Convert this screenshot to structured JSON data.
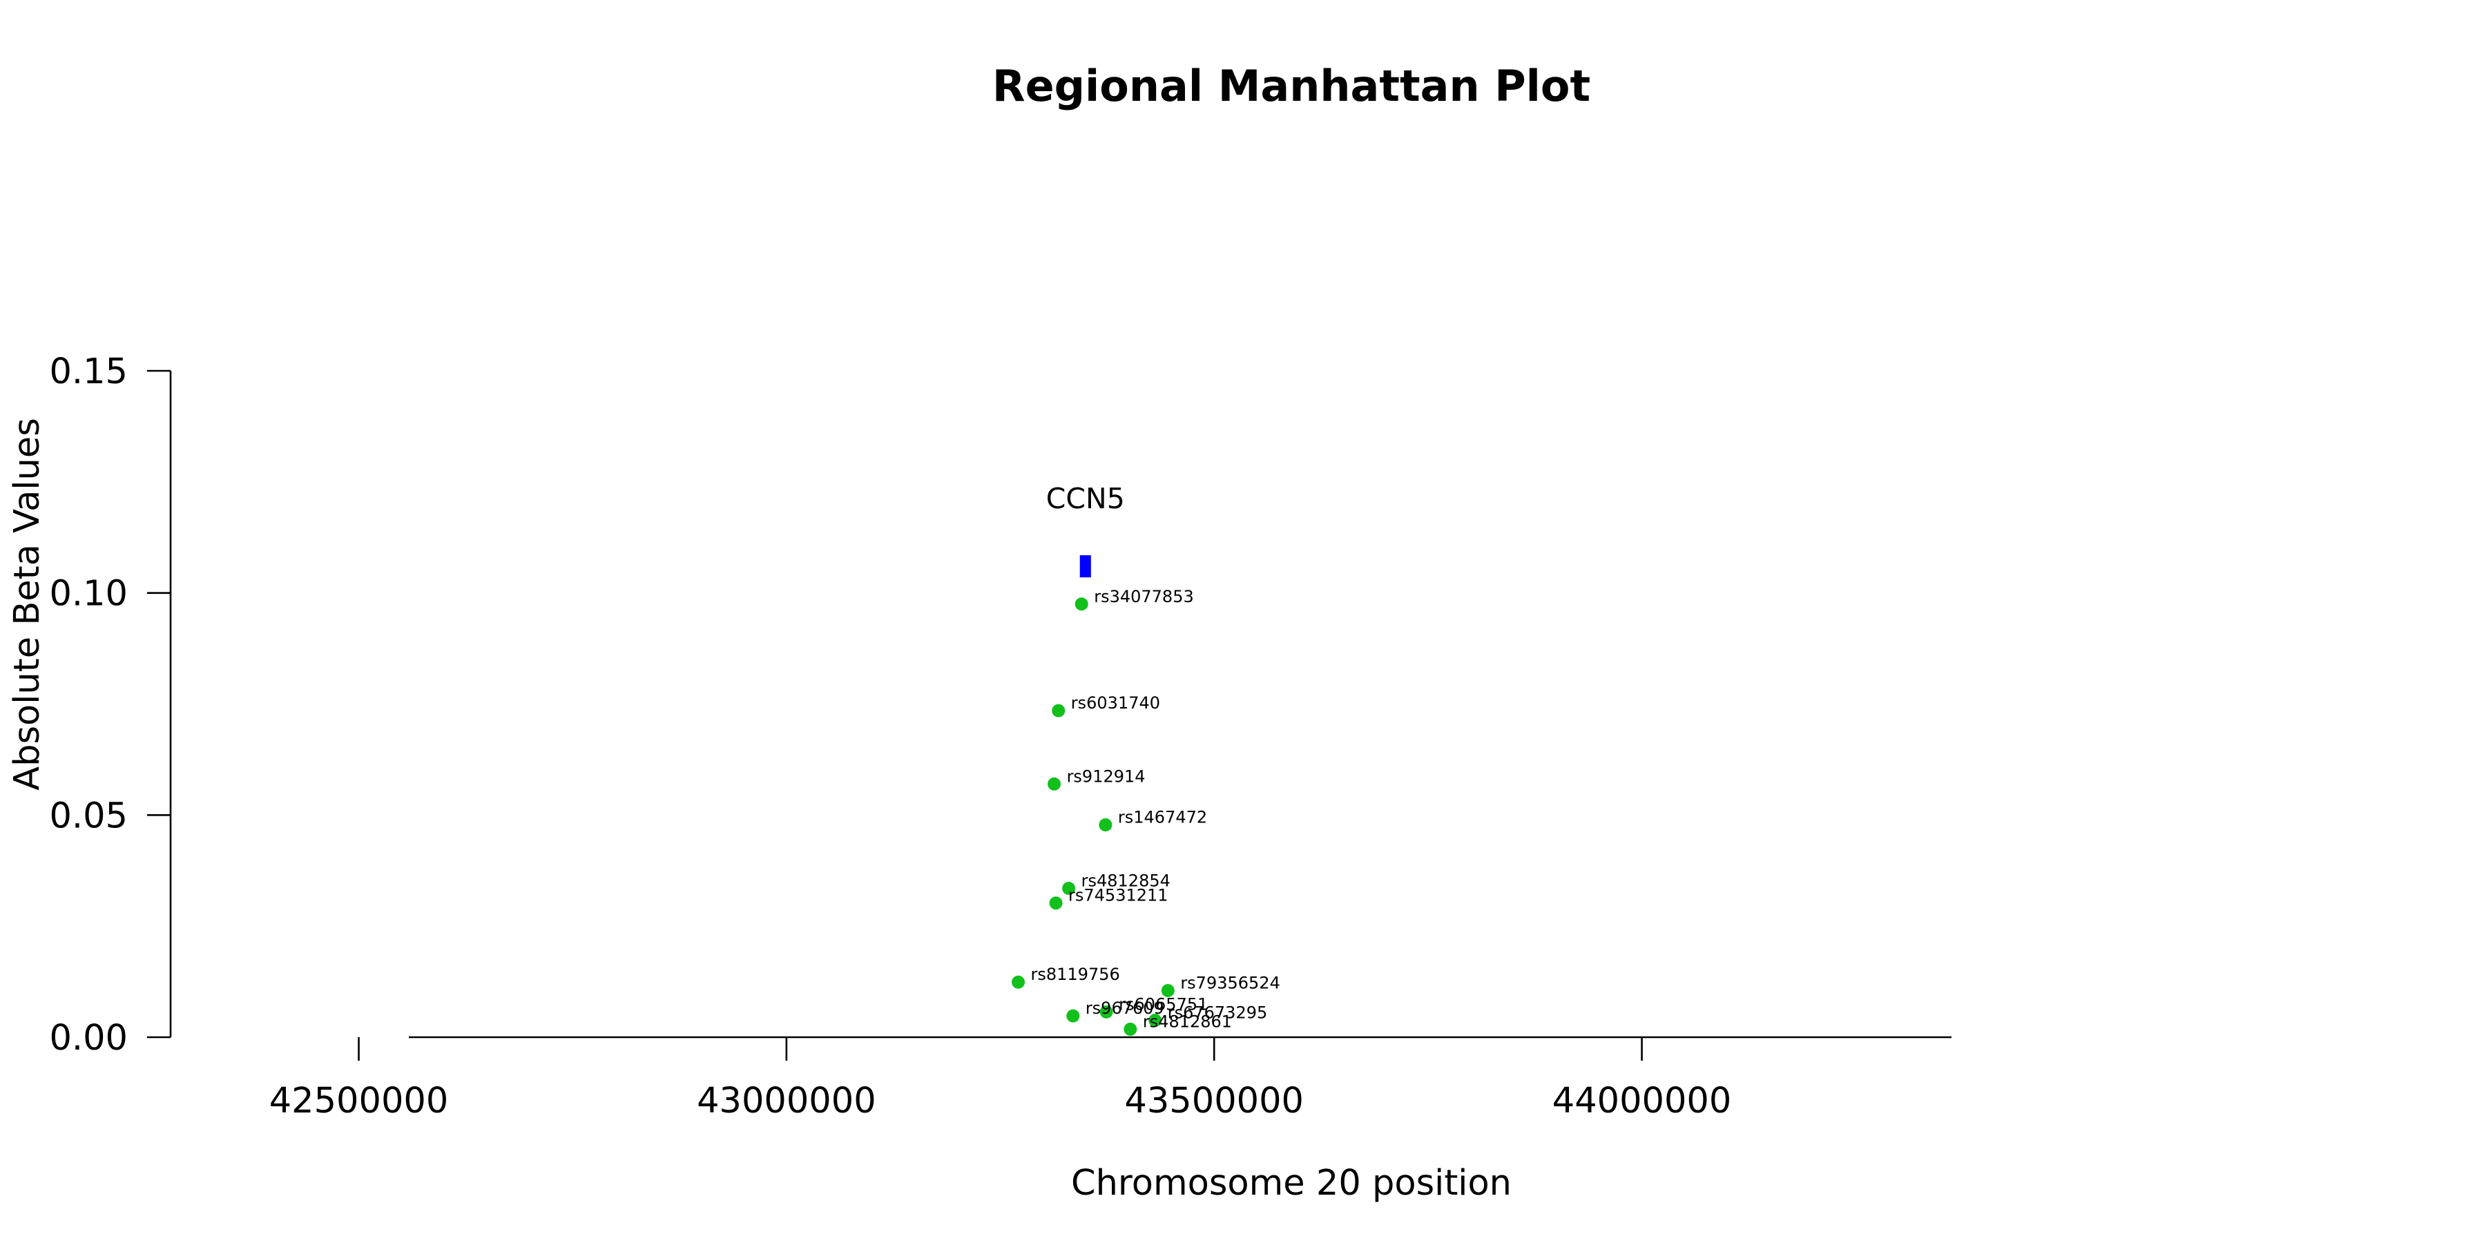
{
  "chart_data": {
    "type": "scatter",
    "title": "Regional Manhattan Plot",
    "xlabel": "Chromosome 20 position",
    "ylabel": "Absolute Beta Values",
    "xlim": [
      42280000,
      44580000
    ],
    "ylim": [
      0,
      0.15
    ],
    "x_ticks": [
      42500000,
      43000000,
      43500000,
      44000000
    ],
    "x_tick_labels": [
      "42500000",
      "43000000",
      "43500000",
      "44000000"
    ],
    "y_ticks": [
      0,
      0.05,
      0.1,
      0.15
    ],
    "y_tick_labels": [
      "0.00",
      "0.05",
      "0.10",
      "0.15"
    ],
    "grid": false,
    "point_color": "#11c01b",
    "gene_color": "#0000ff",
    "genes": [
      {
        "name": "CCN5",
        "start": 43343000,
        "end": 43356000,
        "y": 0.106
      }
    ],
    "points": [
      {
        "label": "rs34077853",
        "x": 43345000,
        "y": 0.0975
      },
      {
        "label": "rs6031740",
        "x": 43318000,
        "y": 0.0735
      },
      {
        "label": "rs912914",
        "x": 43313000,
        "y": 0.057
      },
      {
        "label": "rs1467472",
        "x": 43373000,
        "y": 0.0478
      },
      {
        "label": "rs4812854",
        "x": 43330000,
        "y": 0.0335
      },
      {
        "label": "rs74531211",
        "x": 43315000,
        "y": 0.0302
      },
      {
        "label": "rs8119756",
        "x": 43271000,
        "y": 0.0124
      },
      {
        "label": "rs79356524",
        "x": 43446000,
        "y": 0.0105
      },
      {
        "label": "rs6065751",
        "x": 43374000,
        "y": 0.0057
      },
      {
        "label": "rs967609",
        "x": 43335000,
        "y": 0.0048
      },
      {
        "label": "rs67673295",
        "x": 43431000,
        "y": 0.0038
      },
      {
        "label": "rs4812861",
        "x": 43402000,
        "y": 0.0018
      }
    ]
  }
}
